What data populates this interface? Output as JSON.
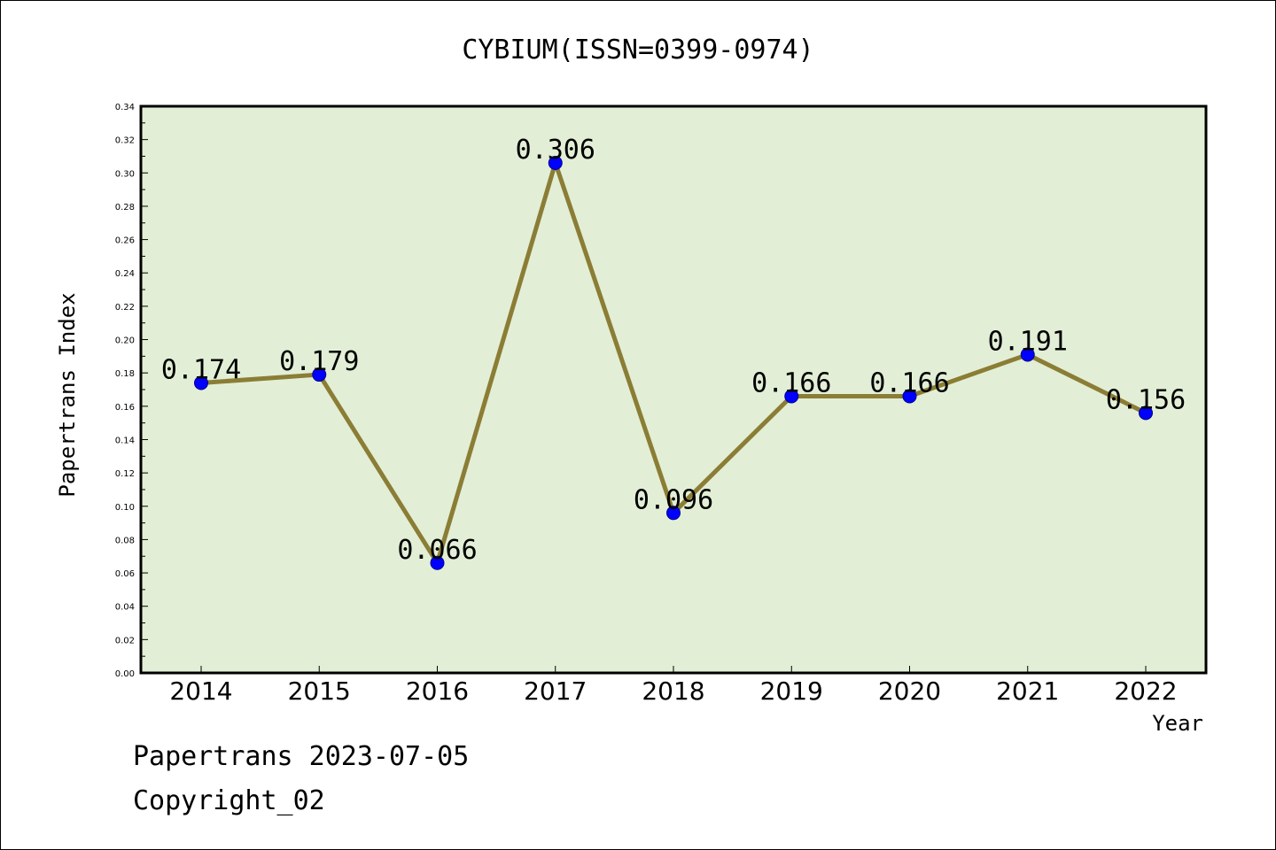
{
  "chart_data": {
    "type": "line",
    "title": "CYBIUM(ISSN=0399-0974)",
    "xlabel": "Year",
    "ylabel": "Papertrans Index",
    "categories": [
      "2014",
      "2015",
      "2016",
      "2017",
      "2018",
      "2019",
      "2020",
      "2021",
      "2022"
    ],
    "values": [
      0.174,
      0.179,
      0.066,
      0.306,
      0.096,
      0.166,
      0.166,
      0.191,
      0.156
    ],
    "data_labels": [
      "0.174",
      "0.179",
      "0.066",
      "0.306",
      "0.096",
      "0.166",
      "0.166",
      "0.191",
      "0.156"
    ],
    "ylim": [
      0,
      0.34
    ],
    "yticks": [
      "0.00",
      "0.02",
      "0.04",
      "0.06",
      "0.08",
      "0.10",
      "0.12",
      "0.14",
      "0.16",
      "0.18",
      "0.20",
      "0.22",
      "0.24",
      "0.26",
      "0.28",
      "0.30",
      "0.32",
      "0.34"
    ],
    "grid": false,
    "legend": "none",
    "colors": {
      "plot_background": "#e2efd6",
      "line": "#8b7d35",
      "marker": "#0000ff"
    }
  },
  "footer": {
    "line1": "Papertrans 2023-07-05",
    "line2": "Copyright_02"
  }
}
